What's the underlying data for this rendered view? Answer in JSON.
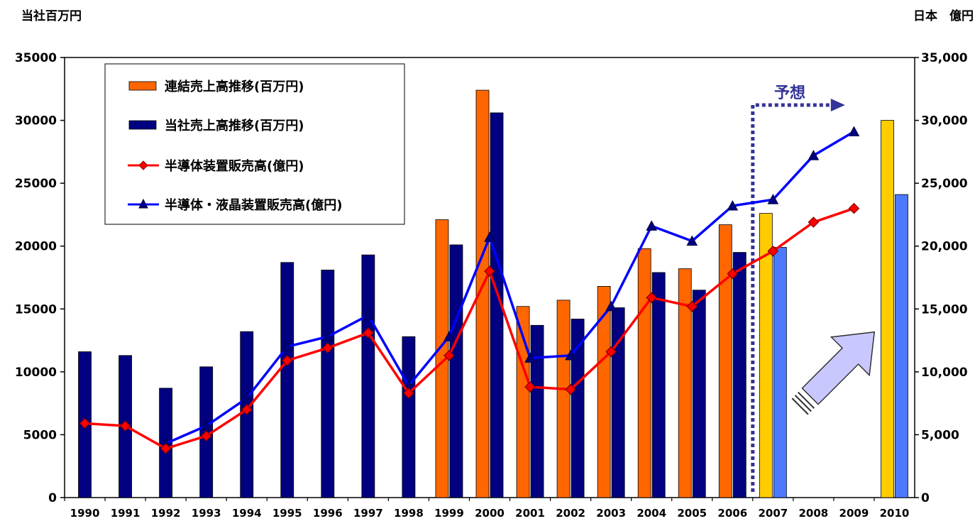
{
  "chart_data": {
    "type": "bar",
    "left_axis_label": "当社百万円",
    "right_axis_label": "日本　億円",
    "categories": [
      "1990",
      "1991",
      "1992",
      "1993",
      "1994",
      "1995",
      "1996",
      "1997",
      "1998",
      "1999",
      "2000",
      "2001",
      "2002",
      "2003",
      "2004",
      "2005",
      "2006",
      "2007",
      "2008",
      "2009",
      "2010"
    ],
    "ylim": [
      0,
      35000
    ],
    "left_ticks": [
      "0",
      "5000",
      "10000",
      "15000",
      "20000",
      "25000",
      "30000",
      "35000"
    ],
    "right_ticks": [
      "0",
      "5,000",
      "10,000",
      "15,000",
      "20,000",
      "25,000",
      "30,000",
      "35,000"
    ],
    "forecast_label": "予想",
    "series": [
      {
        "name": "連結売上高推移(百万円)",
        "kind": "bar",
        "color": "#ff6600",
        "values": [
          null,
          null,
          null,
          null,
          null,
          null,
          null,
          null,
          null,
          22100,
          32400,
          15200,
          15700,
          16800,
          19800,
          18200,
          21700,
          null,
          null,
          null,
          null
        ]
      },
      {
        "name": "当社売上高推移(百万円)",
        "kind": "bar",
        "color": "#000080",
        "values": [
          11600,
          11300,
          8700,
          10400,
          13200,
          18700,
          18100,
          19300,
          12800,
          20100,
          30600,
          13700,
          14200,
          15100,
          17900,
          16500,
          19500,
          null,
          null,
          null,
          null
        ]
      },
      {
        "name": "半導体装置販売高(億円)",
        "kind": "line",
        "color": "#ff0000",
        "marker": "diamond",
        "marker_color": "#ff0000",
        "values": [
          5900,
          5700,
          3900,
          4900,
          7000,
          10900,
          11900,
          13100,
          8300,
          11300,
          18000,
          8800,
          8600,
          11600,
          15900,
          15200,
          17800,
          19600,
          21900,
          23000,
          null
        ]
      },
      {
        "name": "半導体・液晶装置販売高(億円)",
        "kind": "line",
        "color": "#0000ff",
        "marker": "triangle",
        "marker_color": "#000080",
        "values": [
          null,
          null,
          4300,
          5700,
          7900,
          12000,
          12800,
          14500,
          8900,
          12800,
          20700,
          11100,
          11300,
          15200,
          21600,
          20400,
          23200,
          23700,
          27200,
          29100,
          null
        ]
      }
    ],
    "forecast_bars": [
      {
        "category": "2007",
        "consolidated": 22600,
        "company": 19900
      },
      {
        "category": "2010",
        "consolidated": 30000,
        "company": 24100
      }
    ],
    "forecast_colors": {
      "consolidated": "#ffcc00",
      "company": "#4d79ff"
    },
    "arrow_color": "#c8c8ff",
    "forecast_line_color": "#333399",
    "legend_position": "top-left"
  }
}
